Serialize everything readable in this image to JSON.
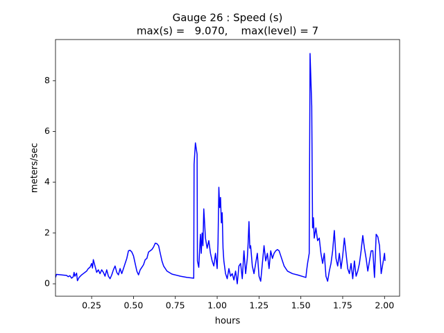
{
  "chart_data": {
    "type": "line",
    "title": "Gauge 26 : Speed (s)",
    "subtitle": "max(s) =   9.070,    max(level) = 7",
    "xlabel": "hours",
    "ylabel": "meters/sec",
    "color": "#0000ff",
    "xlim": [
      0.034,
      2.09
    ],
    "ylim": [
      -0.49,
      9.62
    ],
    "xticks": [
      0.25,
      {
        "value": 0.5,
        "label": "0.50"
      },
      {
        "value": 0.75,
        "label": "0.75"
      },
      {
        "value": 1.0,
        "label": "1.00"
      },
      1.25,
      {
        "value": 1.5,
        "label": "1.50"
      },
      1.75,
      {
        "value": 2.0,
        "label": "2.00"
      }
    ],
    "yticks": [
      0,
      2,
      4,
      6,
      8
    ],
    "x": [
      0.034,
      0.04,
      0.07,
      0.1,
      0.11,
      0.12,
      0.13,
      0.14,
      0.145,
      0.15,
      0.16,
      0.165,
      0.175,
      0.19,
      0.2,
      0.22,
      0.23,
      0.24,
      0.25,
      0.255,
      0.26,
      0.27,
      0.28,
      0.29,
      0.3,
      0.31,
      0.32,
      0.33,
      0.34,
      0.35,
      0.36,
      0.37,
      0.38,
      0.39,
      0.4,
      0.41,
      0.42,
      0.43,
      0.44,
      0.45,
      0.46,
      0.47,
      0.48,
      0.49,
      0.5,
      0.51,
      0.52,
      0.53,
      0.54,
      0.55,
      0.56,
      0.57,
      0.58,
      0.59,
      0.6,
      0.61,
      0.62,
      0.63,
      0.64,
      0.65,
      0.66,
      0.67,
      0.68,
      0.7,
      0.73,
      0.78,
      0.82,
      0.86,
      0.862,
      0.87,
      0.88,
      0.882,
      0.89,
      0.9,
      0.905,
      0.91,
      0.915,
      0.92,
      0.93,
      0.94,
      0.95,
      0.96,
      0.97,
      0.98,
      0.99,
      1.0,
      1.005,
      1.01,
      1.015,
      1.02,
      1.025,
      1.03,
      1.035,
      1.04,
      1.05,
      1.06,
      1.07,
      1.08,
      1.09,
      1.1,
      1.11,
      1.12,
      1.13,
      1.14,
      1.15,
      1.16,
      1.17,
      1.18,
      1.185,
      1.19,
      1.195,
      1.2,
      1.21,
      1.22,
      1.23,
      1.24,
      1.25,
      1.26,
      1.27,
      1.28,
      1.29,
      1.3,
      1.31,
      1.32,
      1.33,
      1.34,
      1.35,
      1.36,
      1.37,
      1.38,
      1.39,
      1.4,
      1.42,
      1.45,
      1.48,
      1.53,
      1.535,
      1.54,
      1.55,
      1.555,
      1.565,
      1.57,
      1.575,
      1.58,
      1.59,
      1.6,
      1.61,
      1.62,
      1.63,
      1.64,
      1.65,
      1.66,
      1.67,
      1.68,
      1.69,
      1.7,
      1.71,
      1.72,
      1.73,
      1.74,
      1.75,
      1.76,
      1.77,
      1.78,
      1.79,
      1.8,
      1.81,
      1.82,
      1.83,
      1.84,
      1.85,
      1.86,
      1.87,
      1.88,
      1.89,
      1.9,
      1.91,
      1.92,
      1.93,
      1.94,
      1.95,
      1.96,
      1.97,
      1.98,
      1.99,
      2.0,
      2.003
    ],
    "values": [
      0.25,
      0.37,
      0.35,
      0.33,
      0.28,
      0.32,
      0.22,
      0.28,
      0.45,
      0.3,
      0.42,
      0.12,
      0.25,
      0.35,
      0.4,
      0.5,
      0.6,
      0.65,
      0.8,
      0.62,
      0.95,
      0.7,
      0.45,
      0.55,
      0.4,
      0.55,
      0.45,
      0.3,
      0.55,
      0.3,
      0.2,
      0.35,
      0.55,
      0.7,
      0.45,
      0.35,
      0.6,
      0.4,
      0.6,
      0.8,
      1.0,
      1.3,
      1.32,
      1.25,
      1.1,
      0.8,
      0.5,
      0.35,
      0.55,
      0.65,
      0.75,
      0.95,
      1.0,
      1.25,
      1.3,
      1.35,
      1.45,
      1.6,
      1.58,
      1.5,
      1.2,
      0.9,
      0.7,
      0.5,
      0.38,
      0.3,
      0.25,
      0.22,
      4.7,
      5.55,
      5.1,
      0.9,
      0.65,
      1.95,
      1.2,
      2.0,
      1.5,
      2.95,
      1.8,
      1.4,
      1.7,
      1.2,
      0.9,
      0.7,
      1.2,
      0.6,
      1.6,
      3.8,
      3.0,
      3.4,
      2.4,
      2.8,
      1.4,
      0.9,
      0.4,
      0.2,
      0.6,
      0.3,
      0.4,
      0.15,
      0.5,
      0.0,
      0.7,
      0.8,
      0.2,
      1.3,
      0.4,
      1.0,
      1.6,
      2.45,
      1.4,
      1.5,
      0.7,
      0.4,
      0.8,
      1.2,
      0.3,
      0.1,
      0.8,
      1.5,
      0.9,
      1.2,
      0.6,
      1.3,
      1.0,
      1.2,
      1.3,
      1.35,
      1.3,
      1.1,
      0.9,
      0.7,
      0.5,
      0.4,
      0.35,
      0.25,
      0.55,
      0.8,
      1.2,
      9.07,
      7.0,
      2.2,
      2.6,
      1.8,
      2.2,
      1.7,
      1.8,
      1.2,
      0.8,
      1.2,
      0.3,
      0.1,
      0.5,
      0.8,
      1.3,
      2.1,
      1.0,
      0.7,
      1.2,
      0.6,
      1.1,
      1.8,
      1.2,
      0.6,
      0.4,
      0.8,
      0.2,
      0.9,
      0.3,
      0.5,
      0.8,
      1.3,
      1.9,
      1.4,
      1.0,
      0.5,
      0.9,
      1.3,
      1.3,
      0.25,
      1.95,
      1.85,
      1.5,
      0.4,
      0.8,
      1.2,
      0.9
    ]
  }
}
